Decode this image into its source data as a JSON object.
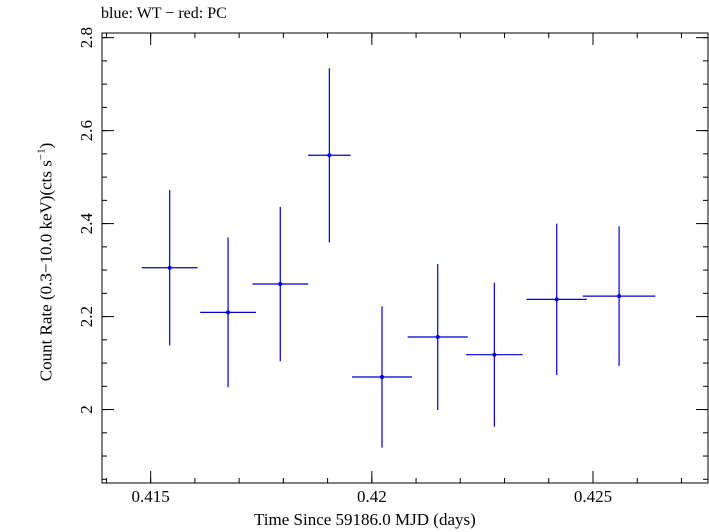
{
  "chart_data": {
    "type": "scatter",
    "title": "blue: WT − red: PC",
    "xlabel": "Time Since 59186.0 MJD (days)",
    "ylabel": {
      "main": "Count Rate (0.3−10.0 keV)(cts s",
      "exp": "−1",
      "close": ")"
    },
    "xlim": [
      0.4139,
      0.4276
    ],
    "ylim": [
      1.842,
      2.81
    ],
    "x_ticks": [
      {
        "value": 0.415,
        "label": "0.415"
      },
      {
        "value": 0.42,
        "label": "0.42"
      },
      {
        "value": 0.425,
        "label": "0.425"
      }
    ],
    "y_ticks": [
      {
        "value": 2.0,
        "label": "2"
      },
      {
        "value": 2.2,
        "label": "2.2"
      },
      {
        "value": 2.4,
        "label": "2.4"
      },
      {
        "value": 2.6,
        "label": "2.6"
      },
      {
        "value": 2.8,
        "label": "2.8"
      }
    ],
    "x_minor_step": 0.001,
    "y_minor_step": 0.05,
    "grid": false,
    "series": [
      {
        "color": "#0000cc",
        "points": [
          {
            "x": 0.41543,
            "y": 2.305,
            "xerr": 0.00063,
            "yerr": 0.167
          },
          {
            "x": 0.41675,
            "y": 2.209,
            "xerr": 0.00063,
            "yerr": 0.161
          },
          {
            "x": 0.41793,
            "y": 2.27,
            "xerr": 0.00063,
            "yerr": 0.166
          },
          {
            "x": 0.41904,
            "y": 2.547,
            "xerr": 0.00048,
            "yerr": 0.187
          },
          {
            "x": 0.42023,
            "y": 2.07,
            "xerr": 0.00068,
            "yerr": 0.152
          },
          {
            "x": 0.42149,
            "y": 2.156,
            "xerr": 0.00068,
            "yerr": 0.157
          },
          {
            "x": 0.42277,
            "y": 2.118,
            "xerr": 0.00064,
            "yerr": 0.155
          },
          {
            "x": 0.42418,
            "y": 2.237,
            "xerr": 0.00068,
            "yerr": 0.163
          },
          {
            "x": 0.42559,
            "y": 2.244,
            "xerr": 0.00082,
            "yerr": 0.15
          }
        ]
      }
    ]
  }
}
